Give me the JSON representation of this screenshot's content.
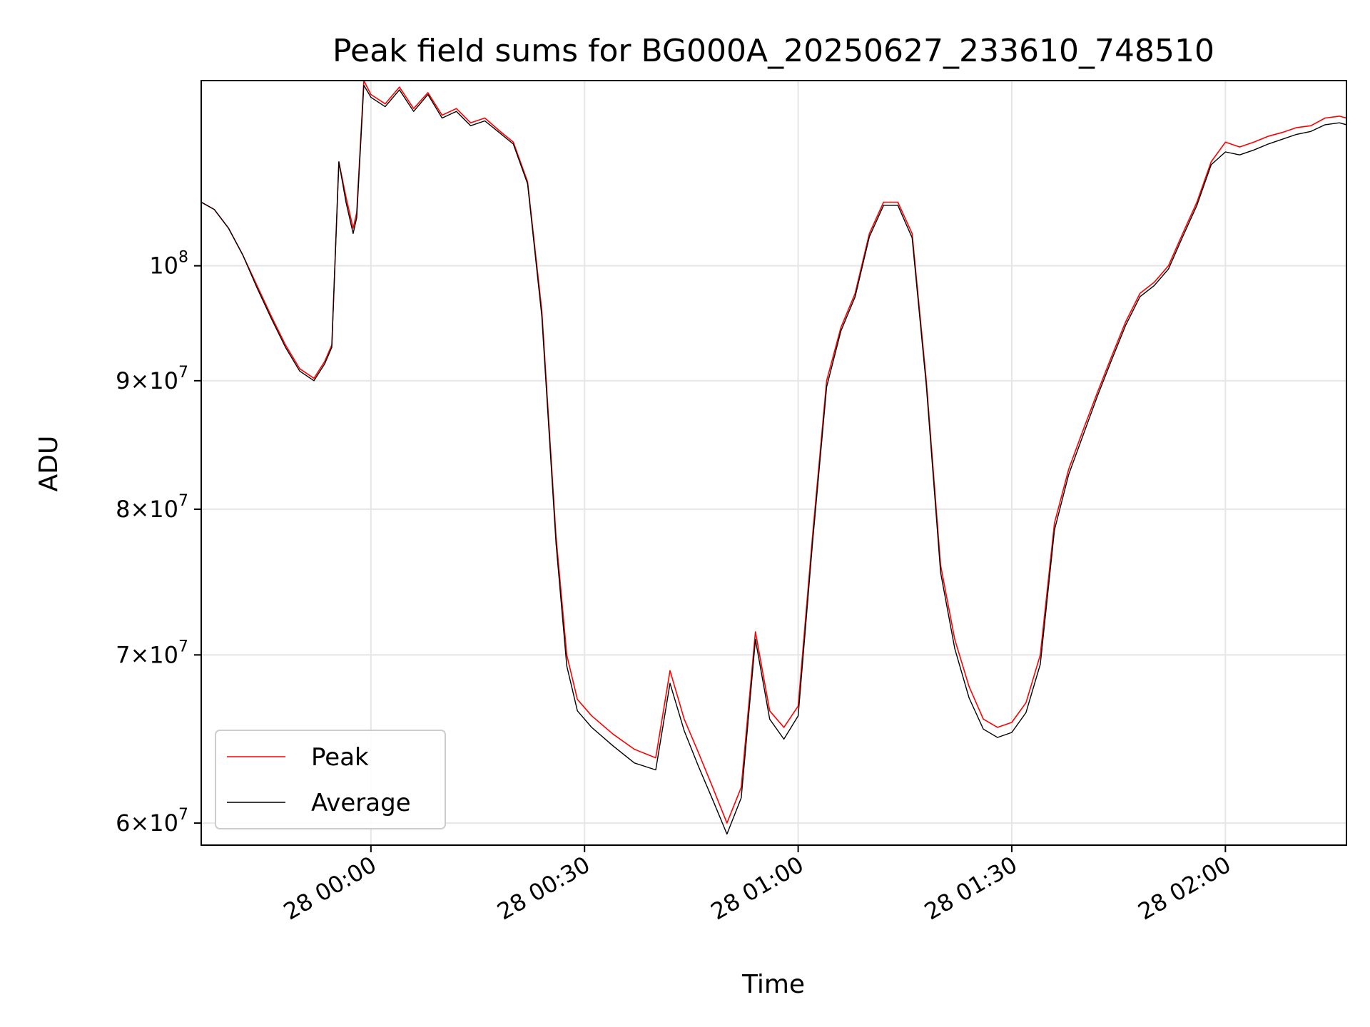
{
  "chart_data": {
    "type": "line",
    "title": "Peak field sums for BG000A_20250627_233610_748510",
    "xlabel": "Time",
    "ylabel": "ADU",
    "yscale": "log",
    "xlim": [
      "2025-06-27T23:36:10",
      "2025-06-28T02:17:00"
    ],
    "ylim": [
      58800000,
      118500000
    ],
    "grid": true,
    "legend_position": "lower-left",
    "x_ticks": [
      {
        "value": "2025-06-28T00:00:00",
        "label": "28 00:00"
      },
      {
        "value": "2025-06-28T00:30:00",
        "label": "28 00:30"
      },
      {
        "value": "2025-06-28T01:00:00",
        "label": "28 01:00"
      },
      {
        "value": "2025-06-28T01:30:00",
        "label": "28 01:30"
      },
      {
        "value": "2025-06-28T02:00:00",
        "label": "28 02:00"
      }
    ],
    "y_ticks": [
      {
        "value": 60000000,
        "mantissa": "6",
        "exponent": "7"
      },
      {
        "value": 70000000,
        "mantissa": "7",
        "exponent": "7"
      },
      {
        "value": 80000000,
        "mantissa": "8",
        "exponent": "7"
      },
      {
        "value": 90000000,
        "mantissa": "9",
        "exponent": "7"
      },
      {
        "value": 100000000,
        "mantissa": "",
        "exponent": "8"
      }
    ],
    "x": [
      "2025-06-27T23:36:10",
      "2025-06-27T23:38:00",
      "2025-06-27T23:40:00",
      "2025-06-27T23:42:00",
      "2025-06-27T23:44:00",
      "2025-06-27T23:46:00",
      "2025-06-27T23:48:00",
      "2025-06-27T23:50:00",
      "2025-06-27T23:52:00",
      "2025-06-27T23:53:30",
      "2025-06-27T23:54:30",
      "2025-06-27T23:55:30",
      "2025-06-27T23:56:30",
      "2025-06-27T23:57:30",
      "2025-06-27T23:58:00",
      "2025-06-27T23:59:00",
      "2025-06-28T00:00:00",
      "2025-06-28T00:02:00",
      "2025-06-28T00:04:00",
      "2025-06-28T00:06:00",
      "2025-06-28T00:08:00",
      "2025-06-28T00:10:00",
      "2025-06-28T00:12:00",
      "2025-06-28T00:14:00",
      "2025-06-28T00:16:00",
      "2025-06-28T00:18:00",
      "2025-06-28T00:20:00",
      "2025-06-28T00:22:00",
      "2025-06-28T00:24:00",
      "2025-06-28T00:26:00",
      "2025-06-28T00:27:30",
      "2025-06-28T00:29:00",
      "2025-06-28T00:31:00",
      "2025-06-28T00:34:00",
      "2025-06-28T00:37:00",
      "2025-06-28T00:40:00",
      "2025-06-28T00:42:00",
      "2025-06-28T00:44:00",
      "2025-06-28T00:46:00",
      "2025-06-28T00:48:00",
      "2025-06-28T00:50:00",
      "2025-06-28T00:52:00",
      "2025-06-28T00:54:00",
      "2025-06-28T00:56:00",
      "2025-06-28T00:58:00",
      "2025-06-28T01:00:00",
      "2025-06-28T01:02:00",
      "2025-06-28T01:04:00",
      "2025-06-28T01:06:00",
      "2025-06-28T01:08:00",
      "2025-06-28T01:10:00",
      "2025-06-28T01:12:00",
      "2025-06-28T01:14:00",
      "2025-06-28T01:16:00",
      "2025-06-28T01:18:00",
      "2025-06-28T01:20:00",
      "2025-06-28T01:22:00",
      "2025-06-28T01:24:00",
      "2025-06-28T01:26:00",
      "2025-06-28T01:28:00",
      "2025-06-28T01:30:00",
      "2025-06-28T01:32:00",
      "2025-06-28T01:34:00",
      "2025-06-28T01:36:00",
      "2025-06-28T01:38:00",
      "2025-06-28T01:40:00",
      "2025-06-28T01:42:00",
      "2025-06-28T01:44:00",
      "2025-06-28T01:46:00",
      "2025-06-28T01:48:00",
      "2025-06-28T01:50:00",
      "2025-06-28T01:52:00",
      "2025-06-28T01:54:00",
      "2025-06-28T01:56:00",
      "2025-06-28T01:58:00",
      "2025-06-28T02:00:00",
      "2025-06-28T02:02:00",
      "2025-06-28T02:04:00",
      "2025-06-28T02:06:00",
      "2025-06-28T02:08:00",
      "2025-06-28T02:10:00",
      "2025-06-28T02:12:00",
      "2025-06-28T02:14:00",
      "2025-06-28T02:16:00",
      "2025-06-28T02:17:00"
    ],
    "series": [
      {
        "name": "Peak",
        "color": "#ff0000",
        "values": [
          106000000,
          105300000,
          103500000,
          101000000,
          98200000,
          95500000,
          93000000,
          91000000,
          90200000,
          91600000,
          93000000,
          110000000,
          106500000,
          103500000,
          105000000,
          118500000,
          117000000,
          116000000,
          117800000,
          115500000,
          117200000,
          114800000,
          115500000,
          114000000,
          114500000,
          113200000,
          112000000,
          108000000,
          96000000,
          78000000,
          70000000,
          67200000,
          66200000,
          65100000,
          64200000,
          63700000,
          69000000,
          66000000,
          64000000,
          62000000,
          60000000,
          62000000,
          71500000,
          66500000,
          65500000,
          66800000,
          78000000,
          90000000,
          94500000,
          97500000,
          103000000,
          106000000,
          106000000,
          103000000,
          90000000,
          76000000,
          71000000,
          68000000,
          66000000,
          65500000,
          65800000,
          67000000,
          70000000,
          79000000,
          83000000,
          86000000,
          89000000,
          92000000,
          95000000,
          97500000,
          98500000,
          100000000,
          103000000,
          106000000,
          110000000,
          112000000,
          111500000,
          112000000,
          112600000,
          113000000,
          113500000,
          113700000,
          114500000,
          114700000,
          114500000
        ]
      },
      {
        "name": "Average",
        "color": "#000000",
        "values": [
          106000000,
          105300000,
          103500000,
          101000000,
          98000000,
          95300000,
          92800000,
          90800000,
          90000000,
          91400000,
          92800000,
          110000000,
          106000000,
          103000000,
          104500000,
          118000000,
          116700000,
          115700000,
          117500000,
          115200000,
          117000000,
          114500000,
          115200000,
          113700000,
          114200000,
          113000000,
          111800000,
          107800000,
          95500000,
          77500000,
          69300000,
          66500000,
          65500000,
          64400000,
          63400000,
          63000000,
          68200000,
          65300000,
          63200000,
          61300000,
          59400000,
          61400000,
          71000000,
          66000000,
          64800000,
          66200000,
          77500000,
          89500000,
          94200000,
          97200000,
          102700000,
          105700000,
          105700000,
          102600000,
          89600000,
          75500000,
          70400000,
          67300000,
          65400000,
          64900000,
          65200000,
          66400000,
          69400000,
          78500000,
          82600000,
          85600000,
          88700000,
          91700000,
          94700000,
          97200000,
          98200000,
          99700000,
          102700000,
          105700000,
          109700000,
          111000000,
          110700000,
          111200000,
          111800000,
          112300000,
          112800000,
          113100000,
          113800000,
          114000000,
          113800000
        ]
      }
    ]
  }
}
